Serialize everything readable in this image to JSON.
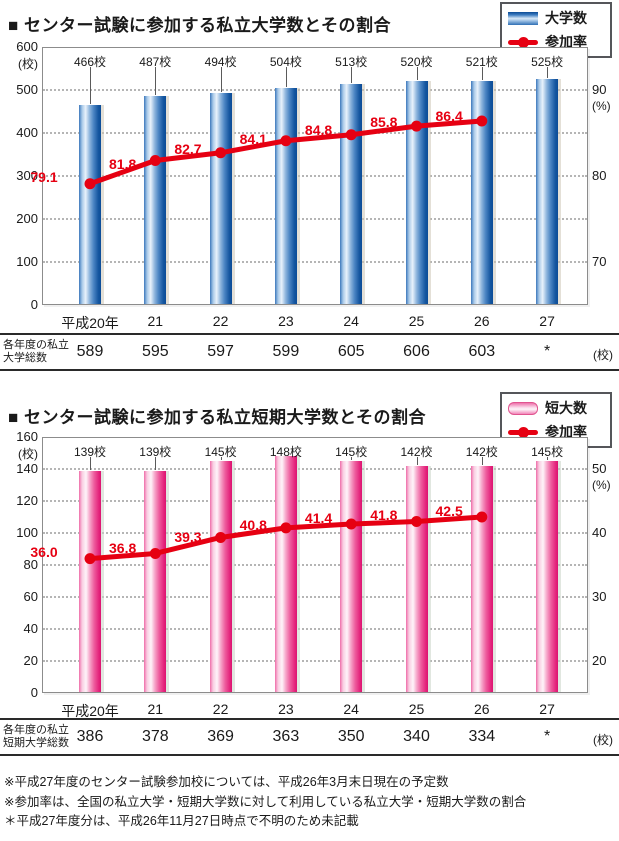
{
  "colors": {
    "accent_red": "#e60012",
    "bar_blue_dark": "#0c4c98",
    "bar_pink_dark": "#dc1371"
  },
  "charts": [
    {
      "title": "■ センター試験に参加する私立大学数とその割合",
      "legend": [
        "大学数",
        "参加率"
      ],
      "bar_style": "blue",
      "chart_data": {
        "type": "bar+line",
        "categories": [
          "平成20年",
          "21",
          "22",
          "23",
          "24",
          "25",
          "26",
          "27"
        ],
        "series": [
          {
            "name": "大学数",
            "type": "bar",
            "axis": "left",
            "unit": "校",
            "values": [
              466,
              487,
              494,
              504,
              513,
              520,
              521,
              525
            ],
            "value_labels": [
              "466校",
              "487校",
              "494校",
              "504校",
              "513校",
              "520校",
              "521校",
              "525校"
            ]
          },
          {
            "name": "参加率",
            "type": "line",
            "axis": "right",
            "unit": "%",
            "values": [
              79.1,
              81.8,
              82.7,
              84.1,
              84.8,
              85.8,
              86.4,
              null
            ]
          }
        ],
        "left_axis": {
          "label": "(校)",
          "min": 0,
          "max": 600,
          "ticks": [
            0,
            100,
            200,
            300,
            400,
            500,
            600
          ]
        },
        "right_axis": {
          "label": "(%)",
          "min": 65,
          "max": 95,
          "ticks": [
            70,
            80,
            90
          ]
        },
        "grid": "dotted horizontal at each left tick"
      },
      "table": {
        "row_label": "各年度の私立\n大学総数",
        "values": [
          "589",
          "595",
          "597",
          "599",
          "605",
          "606",
          "603",
          "*"
        ],
        "unit": "(校)"
      }
    },
    {
      "title": "■ センター試験に参加する私立短期大学数とその割合",
      "legend": [
        "短大数",
        "参加率"
      ],
      "bar_style": "pink",
      "chart_data": {
        "type": "bar+line",
        "categories": [
          "平成20年",
          "21",
          "22",
          "23",
          "24",
          "25",
          "26",
          "27"
        ],
        "series": [
          {
            "name": "短大数",
            "type": "bar",
            "axis": "left",
            "unit": "校",
            "values": [
              139,
              139,
              145,
              148,
              145,
              142,
              142,
              145
            ],
            "value_labels": [
              "139校",
              "139校",
              "145校",
              "148校",
              "145校",
              "142校",
              "142校",
              "145校"
            ]
          },
          {
            "name": "参加率",
            "type": "line",
            "axis": "right",
            "unit": "%",
            "values": [
              36.0,
              36.8,
              39.3,
              40.8,
              41.4,
              41.8,
              42.5,
              null
            ]
          }
        ],
        "left_axis": {
          "label": "(校)",
          "min": 0,
          "max": 160,
          "ticks": [
            0,
            20,
            40,
            60,
            80,
            100,
            120,
            140,
            160
          ]
        },
        "right_axis": {
          "label": "(%)",
          "min": 15,
          "max": 55,
          "ticks": [
            20,
            30,
            40,
            50
          ]
        },
        "grid": "dotted horizontal at each left tick"
      },
      "table": {
        "row_label": "各年度の私立\n短期大学総数",
        "values": [
          "386",
          "378",
          "369",
          "363",
          "350",
          "340",
          "334",
          "*"
        ],
        "unit": "(校)"
      }
    }
  ],
  "footnotes": [
    "※平成27年度のセンター試験参加校については、平成26年3月末日現在の予定数",
    "※参加率は、全国の私立大学・短期大学数に対して利用している私立大学・短期大学数の割合",
    "＊平成27年度分は、平成26年11月27日時点で不明のため未記載"
  ]
}
